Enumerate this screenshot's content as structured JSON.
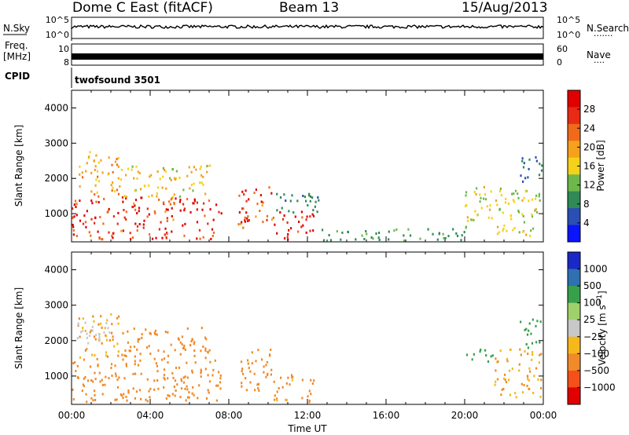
{
  "header": {
    "station": "Dome C East (fitACF)",
    "beam": "Beam 13",
    "date": "15/Aug/2013"
  },
  "sky_panel": {
    "left_label": "N.Sky",
    "right_label": "N.Search",
    "right_dots": "·······",
    "left_ticks": [
      "10^5",
      "10^0"
    ],
    "right_ticks": [
      "10^5",
      "10^0"
    ]
  },
  "freq_panel": {
    "left_label_1": "Freq.",
    "left_label_2": "[MHz]",
    "right_label": "Nave",
    "right_dots": "····",
    "left_ticks": [
      "10",
      "8"
    ],
    "right_ticks": [
      "60",
      "0"
    ]
  },
  "cpid": {
    "label": "CPID",
    "program": "twofsound 3501"
  },
  "colors": {
    "power_scale": [
      "#0a14ff",
      "#2a4fb5",
      "#2f8a55",
      "#6db84b",
      "#f5d21a",
      "#f6a11c",
      "#f06a1a",
      "#e82a16",
      "#e00000"
    ],
    "velocity_scale": [
      "#e00000",
      "#f5501a",
      "#f18a28",
      "#f6b81a",
      "#c8c8c8",
      "#9fd06b",
      "#37a04a",
      "#2e70b0",
      "#1a28c8"
    ]
  },
  "chart_data": [
    {
      "type": "heatmap",
      "panel": "power",
      "xlabel": "",
      "ylabel": "Slant Range [km]",
      "xlim": [
        0,
        24
      ],
      "ylim": [
        200,
        4500
      ],
      "yticks": [
        "1000",
        "2000",
        "3000",
        "4000"
      ],
      "colorbar_label": "Power [dB]",
      "colorbar_ticks": [
        "4",
        "8",
        "12",
        "16",
        "20",
        "24",
        "28"
      ],
      "colorbar_range": [
        0,
        30
      ],
      "regions": [
        {
          "t0": 0.0,
          "t1": 7.6,
          "r0": 300,
          "r1": 1500,
          "value": 26
        },
        {
          "t0": 0.3,
          "t1": 2.4,
          "r0": 1500,
          "r1": 2800,
          "value": 18
        },
        {
          "t0": 2.4,
          "t1": 7.0,
          "r0": 1500,
          "r1": 2400,
          "value": 16
        },
        {
          "t0": 8.4,
          "t1": 10.2,
          "r0": 600,
          "r1": 1800,
          "value": 25
        },
        {
          "t0": 10.2,
          "t1": 12.3,
          "r0": 300,
          "r1": 1100,
          "value": 29
        },
        {
          "t0": 10.2,
          "t1": 12.8,
          "r0": 1000,
          "r1": 1600,
          "value": 8
        },
        {
          "t0": 20.0,
          "t1": 23.8,
          "r0": 400,
          "r1": 1800,
          "value": 14
        },
        {
          "t0": 22.8,
          "t1": 23.9,
          "r0": 1800,
          "r1": 2700,
          "value": 7
        },
        {
          "t0": 12.5,
          "t1": 20.0,
          "r0": 250,
          "r1": 600,
          "value": 9
        }
      ]
    },
    {
      "type": "heatmap",
      "panel": "velocity",
      "xlabel": "Time UT",
      "ylabel": "Slant Range [km]",
      "xlim": [
        0,
        24
      ],
      "ylim": [
        200,
        4500
      ],
      "xticks": [
        "00:00",
        "04:00",
        "08:00",
        "12:00",
        "16:00",
        "20:00",
        "00:00"
      ],
      "yticks": [
        "1000",
        "2000",
        "3000",
        "4000"
      ],
      "colorbar_label": "Velocity [m s^-1]",
      "colorbar_ticks": [
        "-1000",
        "-500",
        "-100",
        "-25",
        "25",
        "100",
        "500",
        "1000"
      ],
      "regions": [
        {
          "t0": 0.0,
          "t1": 7.6,
          "r0": 300,
          "r1": 1500,
          "value": -300
        },
        {
          "t0": 0.3,
          "t1": 2.4,
          "r0": 1500,
          "r1": 2800,
          "value": -100
        },
        {
          "t0": 2.4,
          "t1": 7.0,
          "r0": 1500,
          "r1": 2400,
          "value": -150
        },
        {
          "t0": 8.4,
          "t1": 10.2,
          "r0": 600,
          "r1": 1800,
          "value": -250
        },
        {
          "t0": 10.2,
          "t1": 12.3,
          "r0": 300,
          "r1": 1100,
          "value": -120
        },
        {
          "t0": 20.0,
          "t1": 21.5,
          "r0": 1400,
          "r1": 1800,
          "value": 150
        },
        {
          "t0": 21.5,
          "t1": 23.9,
          "r0": 400,
          "r1": 1800,
          "value": -100
        },
        {
          "t0": 22.8,
          "t1": 23.9,
          "r0": 1800,
          "r1": 2700,
          "value": 200
        },
        {
          "t0": 0.2,
          "t1": 2.0,
          "r0": 1900,
          "r1": 2600,
          "value": 10
        }
      ]
    }
  ]
}
